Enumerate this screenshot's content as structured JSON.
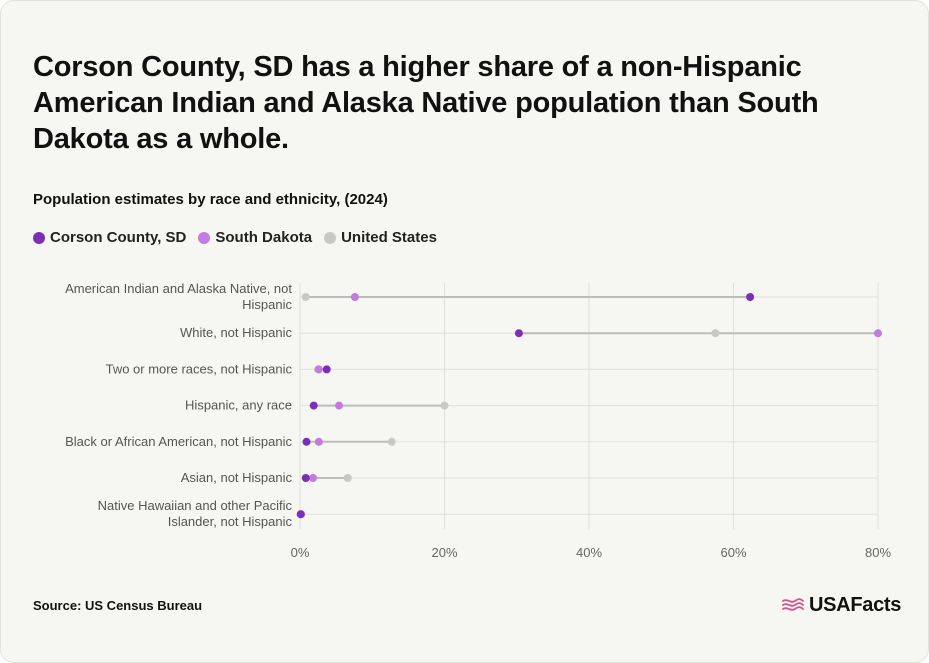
{
  "headline": "Corson County, SD has a higher share of a non-Hispanic American Indian and Alaska Native population than South Dakota as a whole.",
  "subtitle": "Population estimates by race and ethnicity, (2024)",
  "source": "Source: US Census Bureau",
  "brand": "USAFacts",
  "colors": {
    "corson": "#7b2fb5",
    "south_dakota": "#c27be0",
    "united_states": "#c8c8c4",
    "connector": "#bdbdb8",
    "grid": "#e0e0da",
    "brand_flag": "#d2558f"
  },
  "chart_data": {
    "type": "scatter",
    "subtype": "dumbbell",
    "title": "Population estimates by race and ethnicity, (2024)",
    "categories": [
      "American Indian and Alaska Native, not Hispanic",
      "White, not Hispanic",
      "Two or more races, not Hispanic",
      "Hispanic, any race",
      "Black or African American, not Hispanic",
      "Asian, not Hispanic",
      "Native Hawaiian and other Pacific Islander, not Hispanic"
    ],
    "series": [
      {
        "name": "Corson County, SD",
        "color": "#7b2fb5",
        "values": [
          62.3,
          30.3,
          3.7,
          1.9,
          0.9,
          0.8,
          0.1
        ]
      },
      {
        "name": "South Dakota",
        "color": "#c27be0",
        "values": [
          7.6,
          80.0,
          2.6,
          5.4,
          2.6,
          1.8,
          0.1
        ]
      },
      {
        "name": "United States",
        "color": "#c8c8c4",
        "values": [
          0.8,
          57.5,
          2.5,
          20.0,
          12.7,
          6.6,
          0.2
        ]
      }
    ],
    "xlim": [
      0,
      80
    ],
    "xticks": [
      "0%",
      "20%",
      "40%",
      "60%",
      "80%"
    ],
    "xtick_values": [
      0,
      20,
      40,
      60,
      80
    ],
    "grid": true,
    "legend_position": "top-left"
  }
}
